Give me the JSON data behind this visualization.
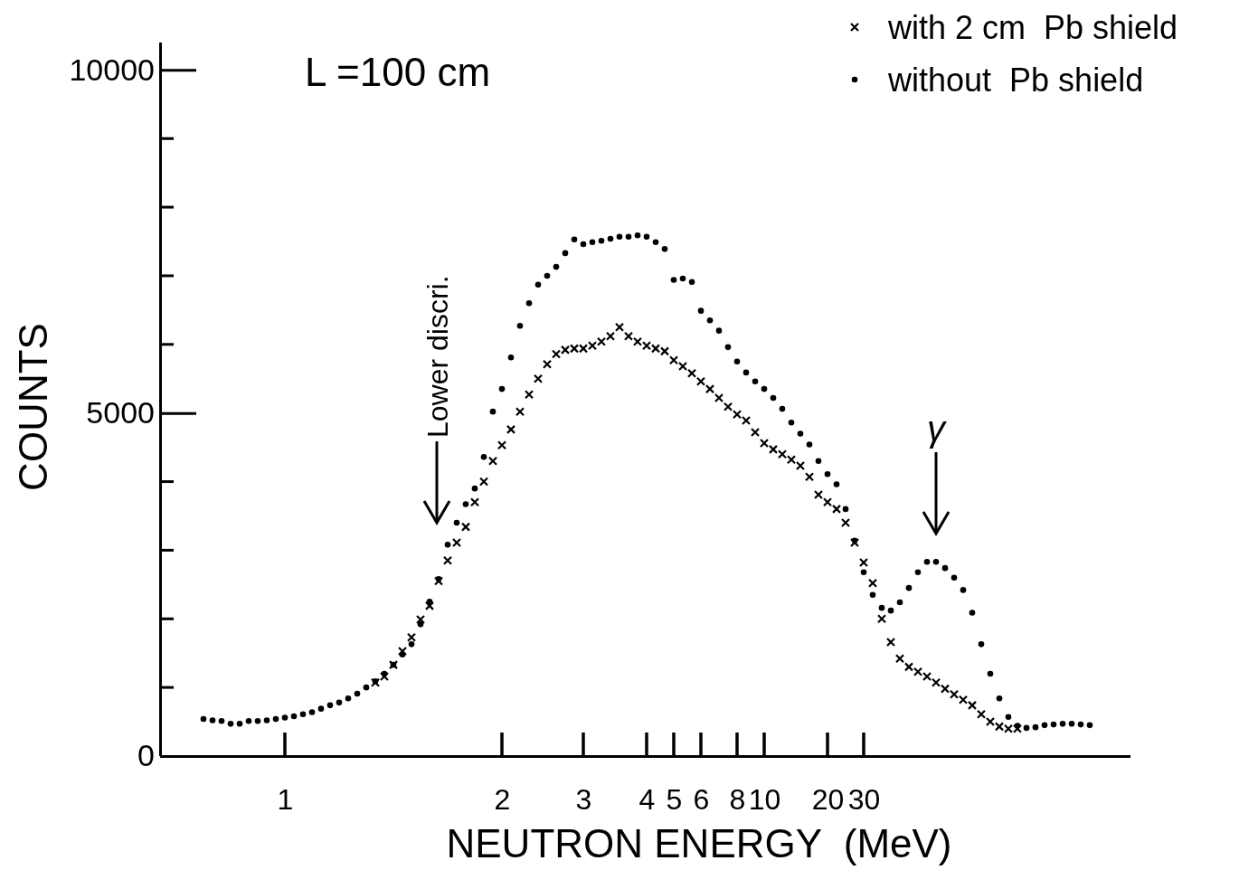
{
  "chart_data": {
    "type": "scatter",
    "xlabel": "NEUTRON ENERGY  (MeV)",
    "ylabel": "COUNTS",
    "categories": [
      null,
      null,
      null,
      null,
      null,
      null,
      null,
      null,
      null,
      "1",
      null,
      null,
      null,
      null,
      null,
      null,
      null,
      null,
      null,
      null,
      null,
      null,
      null,
      null,
      null,
      null,
      null,
      null,
      null,
      null,
      null,
      null,
      null,
      "2",
      null,
      null,
      null,
      null,
      null,
      null,
      null,
      null,
      "3",
      null,
      null,
      null,
      null,
      null,
      null,
      "4",
      null,
      null,
      "5",
      null,
      null,
      "6",
      null,
      null,
      null,
      "8",
      null,
      null,
      "10",
      null,
      null,
      null,
      null,
      null,
      null,
      "20",
      null,
      null,
      null,
      "30",
      null,
      null,
      null,
      null,
      null,
      null,
      null,
      null,
      null,
      null,
      null,
      null,
      null,
      null,
      null,
      null,
      null,
      null,
      null,
      null,
      null,
      null,
      null,
      null,
      null
    ],
    "ylim": [
      0,
      10400
    ],
    "yticks": [
      0,
      5000,
      10000
    ],
    "legend": "top right",
    "annotations": [
      "L =100 cm",
      "Lower discri.",
      "γ"
    ],
    "series": [
      {
        "name": "with 2 cm  Pb shield",
        "color": "#000000",
        "marker": "cross",
        "values": [
          null,
          null,
          null,
          null,
          null,
          null,
          null,
          null,
          null,
          null,
          null,
          null,
          null,
          null,
          null,
          null,
          null,
          null,
          null,
          1070,
          1160,
          1330,
          1530,
          1730,
          1990,
          2190,
          2550,
          2850,
          3110,
          3340,
          3700,
          4000,
          4300,
          4530,
          4760,
          5020,
          5270,
          5500,
          5710,
          5860,
          5920,
          5940,
          5940,
          5980,
          6040,
          6120,
          6250,
          6120,
          6040,
          5980,
          5940,
          5900,
          5770,
          5680,
          5580,
          5460,
          5350,
          5220,
          5090,
          4980,
          4890,
          4720,
          4560,
          4470,
          4400,
          4320,
          4230,
          4070,
          3810,
          3700,
          3600,
          3400,
          3110,
          2820,
          2520,
          2000,
          1660,
          1420,
          1300,
          1230,
          1160,
          1070,
          980,
          900,
          820,
          740,
          610,
          500,
          430,
          400,
          400,
          null,
          null,
          null,
          null,
          null,
          null,
          null,
          null
        ]
      },
      {
        "name": "without  Pb shield",
        "color": "#000000",
        "marker": "circle",
        "values": [
          540,
          520,
          510,
          470,
          470,
          510,
          510,
          520,
          540,
          560,
          580,
          610,
          640,
          690,
          740,
          780,
          840,
          910,
          1000,
          1090,
          1200,
          1330,
          1480,
          1630,
          1920,
          2250,
          2580,
          3080,
          3400,
          3670,
          3900,
          4360,
          5020,
          5350,
          5810,
          6270,
          6600,
          6870,
          7000,
          7130,
          7330,
          7530,
          7460,
          7490,
          7510,
          7540,
          7570,
          7570,
          7590,
          7570,
          7490,
          7390,
          6940,
          6960,
          6910,
          6490,
          6350,
          6200,
          5960,
          5750,
          5590,
          5460,
          5350,
          5220,
          5060,
          4860,
          4700,
          4540,
          4300,
          4110,
          3960,
          3600,
          3140,
          2680,
          2350,
          2160,
          2120,
          2240,
          2450,
          2680,
          2830,
          2830,
          2740,
          2600,
          2420,
          2090,
          1630,
          1200,
          840,
          570,
          440,
          410,
          420,
          450,
          460,
          470,
          470,
          460,
          450
        ]
      }
    ]
  }
}
